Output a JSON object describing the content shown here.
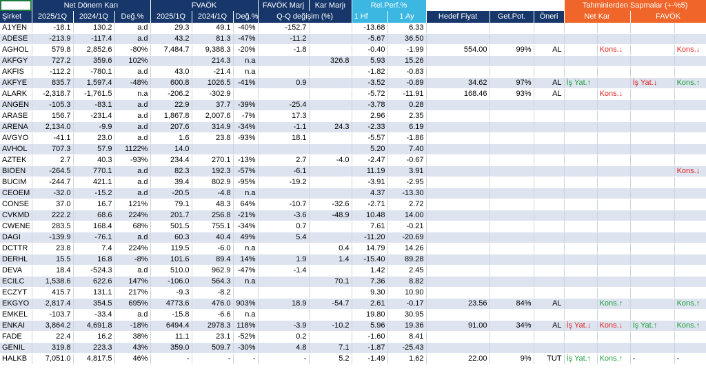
{
  "header": {
    "groups": {
      "net": "Net Dönem Karı",
      "favok": "FVAÖK",
      "favok_marj": "FAVÖK Marj",
      "kar_marji": "Kar Marjı",
      "rel_perf": "Rel.Perf.%",
      "tahmin": "Tahminlerden Sapmalar (+-%5)"
    },
    "columns": {
      "sirket": "Şirket",
      "p1": "2025/1Q",
      "p2": "2024/1Q",
      "deg": "Değ.%",
      "qq": "Q-Q değişim (%)",
      "hf": "1 Hf",
      "ay": "1 Ay",
      "hedef": "Hedef Fiyat",
      "getpot": "Get.Pot.",
      "oneri": "Öneri",
      "netkar": "Net Kar",
      "favok2": "FAVÖK"
    }
  },
  "rows": [
    {
      "sirket": "A1YEN",
      "nk25": "-18.1",
      "nk24": "130.2",
      "nkd": "a.d",
      "fv25": "29.3",
      "fv24": "49.1",
      "fvd": "-40%",
      "fm": "-152.7",
      "km": "",
      "hf": "-13.68",
      "ay": "6.33",
      "hedef": "",
      "pot": "",
      "oneri": "",
      "t1": "",
      "t2": "",
      "t3": "",
      "t4": ""
    },
    {
      "sirket": "ADESE",
      "nk25": "-213.9",
      "nk24": "-117.4",
      "nkd": "a.d",
      "fv25": "43.2",
      "fv24": "81.3",
      "fvd": "-47%",
      "fm": "-11.2",
      "km": "",
      "hf": "-5.67",
      "ay": "36.50",
      "hedef": "",
      "pot": "",
      "oneri": "",
      "t1": "",
      "t2": "",
      "t3": "",
      "t4": ""
    },
    {
      "sirket": "AGHOL",
      "nk25": "579.8",
      "nk24": "2,852.6",
      "nkd": "-80%",
      "fv25": "7,484.7",
      "fv24": "9,388.3",
      "fvd": "-20%",
      "fm": "-1.8",
      "km": "",
      "hf": "-0.40",
      "ay": "-1.99",
      "hedef": "554.00",
      "pot": "99%",
      "oneri": "AL",
      "t1": "",
      "t2": "Kons.↓",
      "t3": "",
      "t4": "Kons.↓"
    },
    {
      "sirket": "AKFGY",
      "nk25": "727.2",
      "nk24": "359.6",
      "nkd": "102%",
      "fv25": "",
      "fv24": "214.3",
      "fvd": "n.a",
      "fm": "",
      "km": "326.8",
      "hf": "5.93",
      "ay": "15.26",
      "hedef": "",
      "pot": "",
      "oneri": "",
      "t1": "",
      "t2": "",
      "t3": "",
      "t4": ""
    },
    {
      "sirket": "AKFIS",
      "nk25": "-112.2",
      "nk24": "-780.1",
      "nkd": "a.d",
      "fv25": "43.0",
      "fv24": "-21.4",
      "fvd": "n.a",
      "fm": "",
      "km": "",
      "hf": "-1.82",
      "ay": "-0.83",
      "hedef": "",
      "pot": "",
      "oneri": "",
      "t1": "",
      "t2": "",
      "t3": "",
      "t4": ""
    },
    {
      "sirket": "AKFYE",
      "nk25": "835.7",
      "nk24": "1,597.4",
      "nkd": "-48%",
      "fv25": "600.8",
      "fv24": "1026.5",
      "fvd": "-41%",
      "fm": "0.9",
      "km": "",
      "hf": "-3.52",
      "ay": "-0.89",
      "hedef": "34.62",
      "pot": "97%",
      "oneri": "AL",
      "t1": "İş Yat.↑",
      "t2": "",
      "t3": "İş Yat.↓",
      "t4": "Kons.↑"
    },
    {
      "sirket": "ALARK",
      "nk25": "-2,318.7",
      "nk24": "-1,761.5",
      "nkd": "n.a",
      "fv25": "-206.2",
      "fv24": "-302.9",
      "fvd": "",
      "fm": "",
      "km": "",
      "hf": "-5.72",
      "ay": "-11.91",
      "hedef": "168.46",
      "pot": "93%",
      "oneri": "AL",
      "t1": "",
      "t2": "Kons.↓",
      "t3": "",
      "t4": ""
    },
    {
      "sirket": "ANGEN",
      "nk25": "-105.3",
      "nk24": "-83.1",
      "nkd": "a.d",
      "fv25": "22.9",
      "fv24": "37.7",
      "fvd": "-39%",
      "fm": "-25.4",
      "km": "",
      "hf": "-3.78",
      "ay": "0.28",
      "hedef": "",
      "pot": "",
      "oneri": "",
      "t1": "",
      "t2": "",
      "t3": "",
      "t4": ""
    },
    {
      "sirket": "ARASE",
      "nk25": "156.7",
      "nk24": "-231.4",
      "nkd": "a.d",
      "fv25": "1,867.8",
      "fv24": "2,007.6",
      "fvd": "-7%",
      "fm": "17.3",
      "km": "",
      "hf": "2.96",
      "ay": "2.35",
      "hedef": "",
      "pot": "",
      "oneri": "",
      "t1": "",
      "t2": "",
      "t3": "",
      "t4": ""
    },
    {
      "sirket": "ARENA",
      "nk25": "2,134.0",
      "nk24": "-9.9",
      "nkd": "a.d",
      "fv25": "207.6",
      "fv24": "314.9",
      "fvd": "-34%",
      "fm": "-1.1",
      "km": "24.3",
      "hf": "-2.33",
      "ay": "6.19",
      "hedef": "",
      "pot": "",
      "oneri": "",
      "t1": "",
      "t2": "",
      "t3": "",
      "t4": ""
    },
    {
      "sirket": "AVGYO",
      "nk25": "-41.1",
      "nk24": "23.0",
      "nkd": "a.d",
      "fv25": "1.6",
      "fv24": "23.8",
      "fvd": "-93%",
      "fm": "18.1",
      "km": "",
      "hf": "-5.57",
      "ay": "-1.86",
      "hedef": "",
      "pot": "",
      "oneri": "",
      "t1": "",
      "t2": "",
      "t3": "",
      "t4": ""
    },
    {
      "sirket": "AVHOL",
      "nk25": "707.3",
      "nk24": "57.9",
      "nkd": "1122%",
      "fv25": "14.0",
      "fv24": "",
      "fvd": "",
      "fm": "",
      "km": "",
      "hf": "5.20",
      "ay": "7.40",
      "hedef": "",
      "pot": "",
      "oneri": "",
      "t1": "",
      "t2": "",
      "t3": "",
      "t4": ""
    },
    {
      "sirket": "AZTEK",
      "nk25": "2.7",
      "nk24": "40.3",
      "nkd": "-93%",
      "fv25": "234.4",
      "fv24": "270.1",
      "fvd": "-13%",
      "fm": "2.7",
      "km": "-4.0",
      "hf": "-2.47",
      "ay": "-0.67",
      "hedef": "",
      "pot": "",
      "oneri": "",
      "t1": "",
      "t2": "",
      "t3": "",
      "t4": ""
    },
    {
      "sirket": "BIOEN",
      "nk25": "-264.5",
      "nk24": "770.1",
      "nkd": "a.d",
      "fv25": "82.3",
      "fv24": "192.3",
      "fvd": "-57%",
      "fm": "-6.1",
      "km": "",
      "hf": "11.19",
      "ay": "3.91",
      "hedef": "",
      "pot": "",
      "oneri": "",
      "t1": "",
      "t2": "",
      "t3": "",
      "t4": "Kons.↓"
    },
    {
      "sirket": "BUCIM",
      "nk25": "-244.7",
      "nk24": "421.1",
      "nkd": "a.d",
      "fv25": "39.4",
      "fv24": "802.9",
      "fvd": "-95%",
      "fm": "-19.2",
      "km": "",
      "hf": "-3.91",
      "ay": "-2.95",
      "hedef": "",
      "pot": "",
      "oneri": "",
      "t1": "",
      "t2": "",
      "t3": "",
      "t4": ""
    },
    {
      "sirket": "CEOEM",
      "nk25": "-32.0",
      "nk24": "-15.2",
      "nkd": "a.d",
      "fv25": "-20.5",
      "fv24": "-4.8",
      "fvd": "n.a",
      "fm": "",
      "km": "",
      "hf": "4.37",
      "ay": "-13.30",
      "hedef": "",
      "pot": "",
      "oneri": "",
      "t1": "",
      "t2": "",
      "t3": "",
      "t4": ""
    },
    {
      "sirket": "CONSE",
      "nk25": "37.0",
      "nk24": "16.7",
      "nkd": "121%",
      "fv25": "79.1",
      "fv24": "48.3",
      "fvd": "64%",
      "fm": "-10.7",
      "km": "-32.6",
      "hf": "-2.71",
      "ay": "2.72",
      "hedef": "",
      "pot": "",
      "oneri": "",
      "t1": "",
      "t2": "",
      "t3": "",
      "t4": ""
    },
    {
      "sirket": "CVKMD",
      "nk25": "222.2",
      "nk24": "68.6",
      "nkd": "224%",
      "fv25": "201.7",
      "fv24": "256.8",
      "fvd": "-21%",
      "fm": "-3.6",
      "km": "-48.9",
      "hf": "10.48",
      "ay": "14.00",
      "hedef": "",
      "pot": "",
      "oneri": "",
      "t1": "",
      "t2": "",
      "t3": "",
      "t4": ""
    },
    {
      "sirket": "CWENE",
      "nk25": "283.5",
      "nk24": "168.4",
      "nkd": "68%",
      "fv25": "501.5",
      "fv24": "755.1",
      "fvd": "-34%",
      "fm": "0.7",
      "km": "",
      "hf": "7.61",
      "ay": "-0.21",
      "hedef": "",
      "pot": "",
      "oneri": "",
      "t1": "",
      "t2": "",
      "t3": "",
      "t4": ""
    },
    {
      "sirket": "DAGI",
      "nk25": "-139.9",
      "nk24": "-76.1",
      "nkd": "a.d",
      "fv25": "60.3",
      "fv24": "40.4",
      "fvd": "49%",
      "fm": "5.4",
      "km": "",
      "hf": "-11.20",
      "ay": "-20.69",
      "hedef": "",
      "pot": "",
      "oneri": "",
      "t1": "",
      "t2": "",
      "t3": "",
      "t4": ""
    },
    {
      "sirket": "DCTTR",
      "nk25": "23.8",
      "nk24": "7.4",
      "nkd": "224%",
      "fv25": "119.5",
      "fv24": "-6.0",
      "fvd": "n.a",
      "fm": "",
      "km": "0.4",
      "hf": "14.79",
      "ay": "14.26",
      "hedef": "",
      "pot": "",
      "oneri": "",
      "t1": "",
      "t2": "",
      "t3": "",
      "t4": ""
    },
    {
      "sirket": "DERHL",
      "nk25": "15.5",
      "nk24": "16.8",
      "nkd": "-8%",
      "fv25": "101.6",
      "fv24": "89.4",
      "fvd": "14%",
      "fm": "1.9",
      "km": "1.4",
      "hf": "-15.40",
      "ay": "89.28",
      "hedef": "",
      "pot": "",
      "oneri": "",
      "t1": "",
      "t2": "",
      "t3": "",
      "t4": ""
    },
    {
      "sirket": "DEVA",
      "nk25": "18.4",
      "nk24": "-524.3",
      "nkd": "a.d",
      "fv25": "510.0",
      "fv24": "962.9",
      "fvd": "-47%",
      "fm": "-1.4",
      "km": "",
      "hf": "1.42",
      "ay": "2.45",
      "hedef": "",
      "pot": "",
      "oneri": "",
      "t1": "",
      "t2": "",
      "t3": "",
      "t4": ""
    },
    {
      "sirket": "ECILC",
      "nk25": "1,538.6",
      "nk24": "622.6",
      "nkd": "147%",
      "fv25": "-106.0",
      "fv24": "564.3",
      "fvd": "n.a",
      "fm": "",
      "km": "70.1",
      "hf": "7.36",
      "ay": "8.82",
      "hedef": "",
      "pot": "",
      "oneri": "",
      "t1": "",
      "t2": "",
      "t3": "",
      "t4": ""
    },
    {
      "sirket": "ECZYT",
      "nk25": "415.7",
      "nk24": "131.1",
      "nkd": "217%",
      "fv25": "-9.3",
      "fv24": "-8.2",
      "fvd": "",
      "fm": "",
      "km": "",
      "hf": "9.30",
      "ay": "10.90",
      "hedef": "",
      "pot": "",
      "oneri": "",
      "t1": "",
      "t2": "",
      "t3": "",
      "t4": ""
    },
    {
      "sirket": "EKGYO",
      "nk25": "2,817.4",
      "nk24": "354.5",
      "nkd": "695%",
      "fv25": "4773.6",
      "fv24": "476.0",
      "fvd": "903%",
      "fm": "18.9",
      "km": "-54.7",
      "hf": "2.61",
      "ay": "-0.17",
      "hedef": "23.56",
      "pot": "84%",
      "oneri": "AL",
      "t1": "",
      "t2": "Kons.↑",
      "t3": "",
      "t4": "Kons.↑"
    },
    {
      "sirket": "EMKEL",
      "nk25": "-103.7",
      "nk24": "-33.4",
      "nkd": "a.d",
      "fv25": "-15.8",
      "fv24": "-6.6",
      "fvd": "n.a",
      "fm": "",
      "km": "",
      "hf": "19.80",
      "ay": "30.95",
      "hedef": "",
      "pot": "",
      "oneri": "",
      "t1": "",
      "t2": "",
      "t3": "",
      "t4": ""
    },
    {
      "sirket": "ENKAI",
      "nk25": "3,864.2",
      "nk24": "4,691.8",
      "nkd": "-18%",
      "fv25": "6494.4",
      "fv24": "2978.3",
      "fvd": "118%",
      "fm": "-3.9",
      "km": "-10.2",
      "hf": "5.96",
      "ay": "19.36",
      "hedef": "91.00",
      "pot": "34%",
      "oneri": "AL",
      "t1": "İş Yat.↓",
      "t2": "Kons.↓",
      "t3": "İş Yat.↑",
      "t4": "Kons.↑"
    },
    {
      "sirket": "FADE",
      "nk25": "22.4",
      "nk24": "16.2",
      "nkd": "38%",
      "fv25": "11.1",
      "fv24": "23.1",
      "fvd": "-52%",
      "fm": "0.2",
      "km": "",
      "hf": "-1.60",
      "ay": "8.41",
      "hedef": "",
      "pot": "",
      "oneri": "",
      "t1": "",
      "t2": "",
      "t3": "",
      "t4": ""
    },
    {
      "sirket": "GENIL",
      "nk25": "319.8",
      "nk24": "223.3",
      "nkd": "43%",
      "fv25": "359.0",
      "fv24": "509.7",
      "fvd": "-30%",
      "fm": "4.8",
      "km": "7.1",
      "hf": "-1.87",
      "ay": "-25.43",
      "hedef": "",
      "pot": "",
      "oneri": "",
      "t1": "",
      "t2": "",
      "t3": "",
      "t4": ""
    },
    {
      "sirket": "HALKB",
      "nk25": "7,051.0",
      "nk24": "4,817.5",
      "nkd": "46%",
      "fv25": "-",
      "fv24": "-",
      "fvd": "-",
      "fm": "-",
      "km": "5.2",
      "hf": "-1.49",
      "ay": "1.62",
      "hedef": "22.00",
      "pot": "9%",
      "oneri": "TUT",
      "t1": "İş Yat.↑",
      "t2": "Kons.↑",
      "t3": "-",
      "t4": "-"
    }
  ]
}
